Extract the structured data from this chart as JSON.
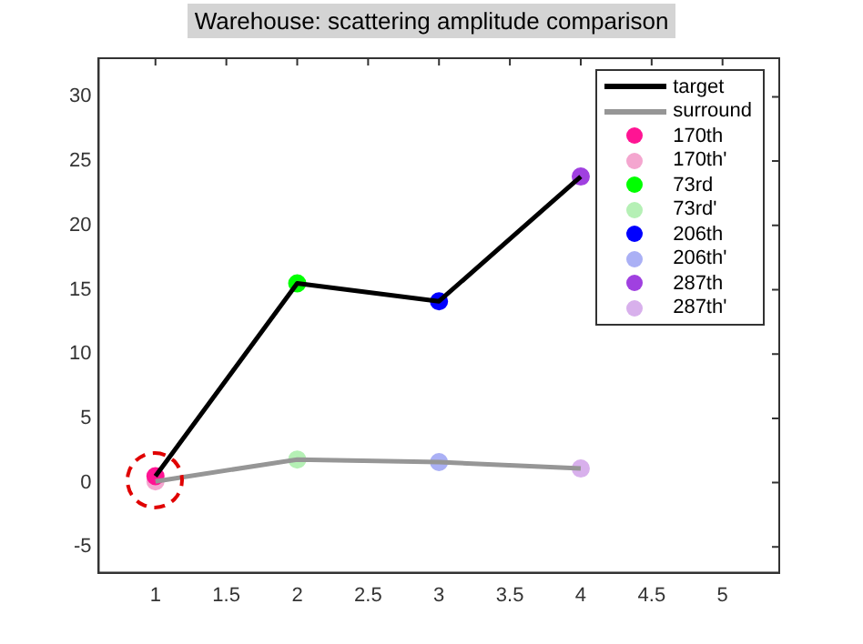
{
  "chart_data": {
    "type": "line",
    "title": "Warehouse: scattering amplitude comparison",
    "x": [
      1,
      2,
      3,
      4
    ],
    "series": [
      {
        "name": "target",
        "color": "#000000",
        "values": [
          0.5,
          15.5,
          14.1,
          23.8
        ]
      },
      {
        "name": "surround",
        "color": "#969696",
        "values": [
          0.1,
          1.8,
          1.6,
          1.1
        ]
      },
      {
        "name": "170th",
        "type": "scatter",
        "color": "#ff1493",
        "x": [
          1
        ],
        "values": [
          0.5
        ]
      },
      {
        "name": "170th'",
        "type": "scatter",
        "color": "#f4a6cf",
        "x": [
          1
        ],
        "values": [
          0.1
        ]
      },
      {
        "name": "73rd",
        "type": "scatter",
        "color": "#00ff00",
        "x": [
          2
        ],
        "values": [
          15.5
        ]
      },
      {
        "name": "73rd'",
        "type": "scatter",
        "color": "#b5f0b5",
        "x": [
          2
        ],
        "values": [
          1.8
        ]
      },
      {
        "name": "206th",
        "type": "scatter",
        "color": "#0000ff",
        "x": [
          3
        ],
        "values": [
          14.1
        ]
      },
      {
        "name": "206th'",
        "type": "scatter",
        "color": "#aab0f5",
        "x": [
          3
        ],
        "values": [
          1.6
        ]
      },
      {
        "name": "287th",
        "type": "scatter",
        "color": "#a040e0",
        "x": [
          4
        ],
        "values": [
          23.8
        ]
      },
      {
        "name": "287th'",
        "type": "scatter",
        "color": "#d8b0ec",
        "x": [
          4
        ],
        "values": [
          1.1
        ]
      }
    ],
    "xlim": [
      0.6,
      5.4
    ],
    "xticks": [
      1,
      1.5,
      2,
      2.5,
      3,
      3.5,
      4,
      4.5,
      5
    ],
    "ylim": [
      -7,
      33
    ],
    "yticks": [
      -5,
      0,
      5,
      10,
      15,
      20,
      25,
      30
    ],
    "grid": false,
    "legend": "top right"
  }
}
